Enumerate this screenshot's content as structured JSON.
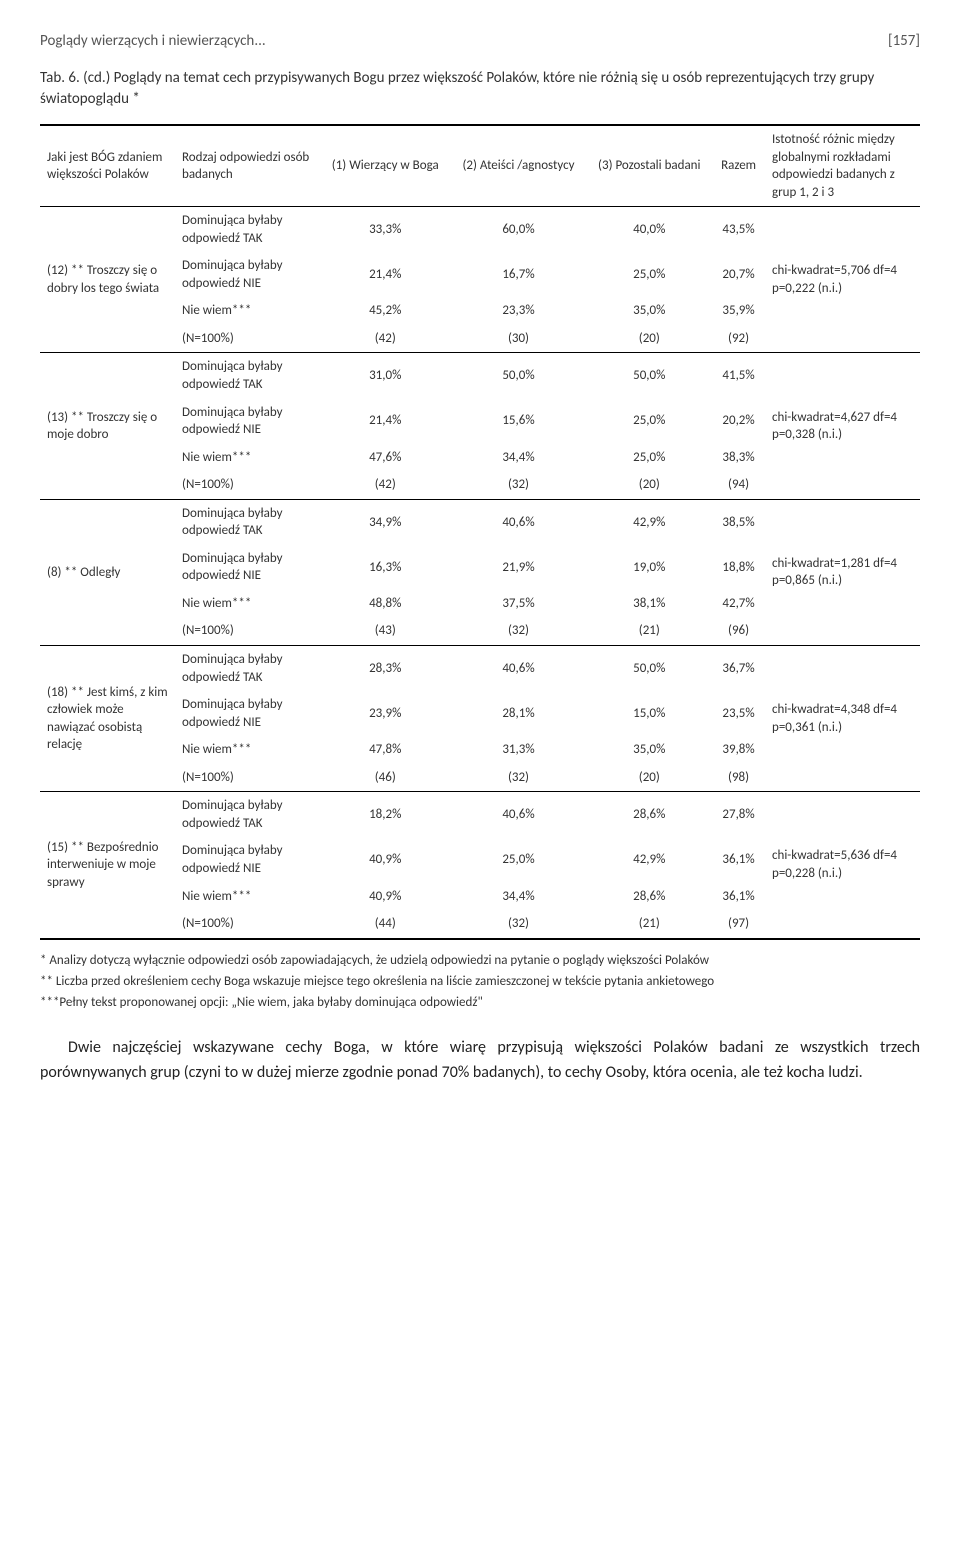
{
  "header": {
    "running_title": "Poglądy wierzących i niewierzących...",
    "page_num": "[157]"
  },
  "caption": "Tab. 6. (cd.) Poglądy na temat cech przypisywanych Bogu przez większość Polaków, które nie różnią się u osób reprezentujących trzy grupy światopoglądu *",
  "columns": {
    "c0": "Jaki jest BÓG zdaniem większości Polaków",
    "c1": "Rodzaj odpowiedzi osób badanych",
    "c2": "(1) Wierzący w Boga",
    "c3": "(2) Ateiści /agnostycy",
    "c4": "(3) Pozostali badani",
    "c5": "Razem",
    "c6": "Istotność różnic między globalnymi rozkładami odpowiedzi badanych z grup 1, 2 i 3"
  },
  "resp_labels": {
    "tak": "Dominująca byłaby odpowiedź TAK",
    "nie": "Dominująca byłaby odpowiedź NIE",
    "nw": "Nie wiem***",
    "n": "(N=100%)"
  },
  "groups": [
    {
      "attr": "(12) ** Troszczy się o dobry los tego świata",
      "rows": [
        {
          "r1": "33,3%",
          "r2": "60,0%",
          "r3": "40,0%",
          "r4": "43,5%"
        },
        {
          "r1": "21,4%",
          "r2": "16,7%",
          "r3": "25,0%",
          "r4": "20,7%"
        },
        {
          "r1": "45,2%",
          "r2": "23,3%",
          "r3": "35,0%",
          "r4": "35,9%"
        },
        {
          "r1": "(42)",
          "r2": "(30)",
          "r3": "(20)",
          "r4": "(92)"
        }
      ],
      "sig": "chi-kwadrat=5,706 df=4 p=0,222 (n.i.)"
    },
    {
      "attr": "(13) ** Troszczy się o moje dobro",
      "rows": [
        {
          "r1": "31,0%",
          "r2": "50,0%",
          "r3": "50,0%",
          "r4": "41,5%"
        },
        {
          "r1": "21,4%",
          "r2": "15,6%",
          "r3": "25,0%",
          "r4": "20,2%"
        },
        {
          "r1": "47,6%",
          "r2": "34,4%",
          "r3": "25,0%",
          "r4": "38,3%"
        },
        {
          "r1": "(42)",
          "r2": "(32)",
          "r3": "(20)",
          "r4": "(94)"
        }
      ],
      "sig": "chi-kwadrat=4,627 df=4 p=0,328 (n.i.)"
    },
    {
      "attr": "(8) ** Odległy",
      "rows": [
        {
          "r1": "34,9%",
          "r2": "40,6%",
          "r3": "42,9%",
          "r4": "38,5%"
        },
        {
          "r1": "16,3%",
          "r2": "21,9%",
          "r3": "19,0%",
          "r4": "18,8%"
        },
        {
          "r1": "48,8%",
          "r2": "37,5%",
          "r3": "38,1%",
          "r4": "42,7%"
        },
        {
          "r1": "(43)",
          "r2": "(32)",
          "r3": "(21)",
          "r4": "(96)"
        }
      ],
      "sig": "chi-kwadrat=1,281 df=4 p=0,865 (n.i.)"
    },
    {
      "attr": "(18) ** Jest kimś, z kim człowiek może nawiązać osobistą relację",
      "rows": [
        {
          "r1": "28,3%",
          "r2": "40,6%",
          "r3": "50,0%",
          "r4": "36,7%"
        },
        {
          "r1": "23,9%",
          "r2": "28,1%",
          "r3": "15,0%",
          "r4": "23,5%"
        },
        {
          "r1": "47,8%",
          "r2": "31,3%",
          "r3": "35,0%",
          "r4": "39,8%"
        },
        {
          "r1": "(46)",
          "r2": "(32)",
          "r3": "(20)",
          "r4": "(98)"
        }
      ],
      "sig": "chi-kwadrat=4,348 df=4 p=0,361 (n.i.)"
    },
    {
      "attr": "(15) ** Bezpośrednio interweniuje w moje sprawy",
      "rows": [
        {
          "r1": "18,2%",
          "r2": "40,6%",
          "r3": "28,6%",
          "r4": "27,8%"
        },
        {
          "r1": "40,9%",
          "r2": "25,0%",
          "r3": "42,9%",
          "r4": "36,1%"
        },
        {
          "r1": "40,9%",
          "r2": "34,4%",
          "r3": "28,6%",
          "r4": "36,1%"
        },
        {
          "r1": "(44)",
          "r2": "(32)",
          "r3": "(21)",
          "r4": "(97)"
        }
      ],
      "sig": "chi-kwadrat=5,636 df=4 p=0,228 (n.i.)"
    }
  ],
  "footnotes": {
    "f1": "* Analizy dotyczą wyłącznie odpowiedzi osób zapowiadających, że udzielą odpowiedzi na pytanie o poglądy większości Polaków",
    "f2": "** Liczba przed określeniem cechy Boga wskazuje miejsce tego określenia na liście zamieszczonej w tekście pytania ankietowego",
    "f3": "***Pełny tekst proponowanej opcji: „Nie wiem, jaka byłaby dominująca odpowiedź\""
  },
  "body_text": "Dwie najczęściej wskazywane cechy Boga, w które wiarę przypisują większości Polaków badani ze wszystkich trzech porównywanych grup (czyni to w dużej mierze zgodnie ponad 70% badanych), to cechy Osoby, która ocenia, ale też kocha ludzi."
}
